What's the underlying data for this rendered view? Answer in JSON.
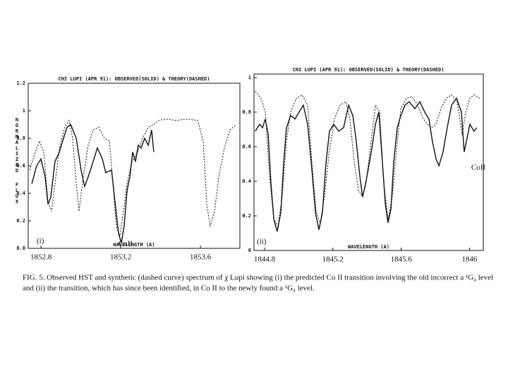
{
  "chart_data": [
    {
      "type": "line",
      "title": "CHI LUPI (APR 91): OBSERVED(SOLID) & THEORY(DASHED)",
      "y_label": "NORMALIZED FLUX",
      "x_label": "WAVELENGTH (A)",
      "annotations": [
        "(i)",
        "CoII"
      ],
      "xlim": [
        1852.736,
        1853.798
      ],
      "ylim": [
        0,
        1.2
      ],
      "xticks": [
        1852.8,
        1853.2,
        1853.6
      ],
      "yticks": [
        1.2,
        1,
        0.8,
        0.6,
        0.4,
        0.2,
        {
          "value": 0,
          "label": "0.0"
        }
      ],
      "series": [
        {
          "color": "#111111",
          "dashed": false,
          "x": [
            1852.754,
            1852.778,
            1852.8,
            1852.821,
            1852.835,
            1852.849,
            1852.87,
            1852.892,
            1852.913,
            1852.931,
            1852.949,
            1852.977,
            1853.001,
            1853.019,
            1853.037,
            1853.055,
            1853.083,
            1853.108,
            1853.125,
            1853.154,
            1853.171,
            1853.189,
            1853.203,
            1853.217,
            1853.232,
            1853.246,
            1853.26,
            1853.274,
            1853.288,
            1853.302,
            1853.32,
            1853.338,
            1853.355,
            1853.366
          ],
          "values": [
            0.47,
            0.6,
            0.65,
            0.52,
            0.32,
            0.37,
            0.63,
            0.7,
            0.8,
            0.88,
            0.9,
            0.8,
            0.57,
            0.45,
            0.52,
            0.6,
            0.73,
            0.65,
            0.55,
            0.57,
            0.34,
            0.11,
            0.04,
            0.16,
            0.42,
            0.52,
            0.7,
            0.63,
            0.75,
            0.73,
            0.8,
            0.75,
            0.86,
            0.7
          ]
        },
        {
          "color": "#111111",
          "dashed": true,
          "x": [
            1852.743,
            1852.771,
            1852.793,
            1852.814,
            1852.835,
            1852.853,
            1852.87,
            1852.895,
            1852.92,
            1852.941,
            1852.959,
            1852.977,
            1852.991,
            1853.012,
            1853.037,
            1853.062,
            1853.09,
            1853.118,
            1853.143,
            1853.161,
            1853.178,
            1853.196,
            1853.214,
            1853.232,
            1853.256,
            1853.285,
            1853.309,
            1853.338,
            1853.366,
            1853.391,
            1853.426,
            1853.479,
            1853.532,
            1853.586,
            1853.614,
            1853.632,
            1853.649,
            1853.671,
            1853.692,
            1853.72,
            1853.748,
            1853.78
          ],
          "values": [
            0.57,
            0.7,
            0.78,
            0.7,
            0.34,
            0.27,
            0.47,
            0.75,
            0.88,
            0.93,
            0.8,
            0.47,
            0.27,
            0.52,
            0.75,
            0.86,
            0.88,
            0.8,
            0.78,
            0.47,
            0.16,
            0.09,
            0.27,
            0.47,
            0.63,
            0.7,
            0.8,
            0.88,
            0.9,
            0.93,
            0.94,
            0.93,
            0.94,
            0.93,
            0.78,
            0.32,
            0.16,
            0.27,
            0.52,
            0.73,
            0.86,
            0.9
          ]
        }
      ]
    },
    {
      "type": "line",
      "title": "CHI LUPI (APR 91): OBSERVED(SOLID) & THEORY(DASHED)",
      "x_label": "WAVELENGTH (A)",
      "annotations": [
        "(ii)",
        "CoII"
      ],
      "xlim": [
        1844.738,
        1846.081
      ],
      "ylim": [
        0,
        1.02
      ],
      "xticks": [
        1844.8,
        1845.2,
        1845.6,
        1846
      ],
      "yticks": [
        1,
        0.8,
        0.6,
        0.4,
        0.2,
        0
      ],
      "series": [
        {
          "color": "#111111",
          "dashed": false,
          "x": [
            1844.746,
            1844.771,
            1844.788,
            1844.804,
            1844.821,
            1844.837,
            1844.854,
            1844.874,
            1844.895,
            1844.912,
            1844.928,
            1844.953,
            1844.978,
            1845.002,
            1845.027,
            1845.052,
            1845.077,
            1845.098,
            1845.118,
            1845.139,
            1845.16,
            1845.18,
            1845.205,
            1845.234,
            1845.263,
            1845.292,
            1845.317,
            1845.337,
            1845.358,
            1845.374,
            1845.391,
            1845.407,
            1845.428,
            1845.449,
            1845.469,
            1845.49,
            1845.507,
            1845.523,
            1845.54,
            1845.556,
            1845.577,
            1845.598,
            1845.622,
            1845.647,
            1845.68,
            1845.709,
            1845.738,
            1845.763,
            1845.783,
            1845.804,
            1845.821,
            1845.845,
            1845.87,
            1845.895,
            1845.924,
            1845.953,
            1845.969,
            1845.986,
            1846.002,
            1846.027,
            1846.043
          ],
          "values": [
            0.69,
            0.73,
            0.71,
            0.76,
            0.67,
            0.39,
            0.18,
            0.11,
            0.22,
            0.51,
            0.71,
            0.78,
            0.76,
            0.8,
            0.84,
            0.73,
            0.47,
            0.22,
            0.12,
            0.22,
            0.51,
            0.69,
            0.73,
            0.69,
            0.71,
            0.84,
            0.78,
            0.63,
            0.43,
            0.31,
            0.38,
            0.47,
            0.59,
            0.73,
            0.8,
            0.51,
            0.27,
            0.16,
            0.24,
            0.51,
            0.71,
            0.78,
            0.84,
            0.86,
            0.82,
            0.86,
            0.8,
            0.76,
            0.63,
            0.53,
            0.49,
            0.57,
            0.71,
            0.84,
            0.88,
            0.8,
            0.57,
            0.65,
            0.73,
            0.69,
            0.71
          ]
        },
        {
          "color": "#111111",
          "dashed": true,
          "x": [
            1844.746,
            1844.779,
            1844.804,
            1844.829,
            1844.854,
            1844.879,
            1844.903,
            1844.928,
            1844.953,
            1844.986,
            1845.019,
            1845.052,
            1845.077,
            1845.102,
            1845.126,
            1845.151,
            1845.176,
            1845.209,
            1845.242,
            1845.275,
            1845.3,
            1845.325,
            1845.35,
            1845.374,
            1845.399,
            1845.424,
            1845.449,
            1845.474,
            1845.498,
            1845.523,
            1845.548,
            1845.573,
            1845.598,
            1845.631,
            1845.664,
            1845.697,
            1845.73,
            1845.755,
            1845.779,
            1845.804,
            1845.833,
            1845.862,
            1845.895,
            1845.928,
            1845.957,
            1845.978,
            1846.002,
            1846.027,
            1846.06
          ],
          "values": [
            0.92,
            0.88,
            0.8,
            0.43,
            0.18,
            0.14,
            0.31,
            0.63,
            0.8,
            0.88,
            0.9,
            0.84,
            0.51,
            0.22,
            0.16,
            0.31,
            0.55,
            0.76,
            0.84,
            0.86,
            0.76,
            0.51,
            0.35,
            0.31,
            0.43,
            0.63,
            0.84,
            0.8,
            0.39,
            0.18,
            0.31,
            0.59,
            0.82,
            0.88,
            0.89,
            0.84,
            0.76,
            0.73,
            0.71,
            0.73,
            0.82,
            0.88,
            0.9,
            0.86,
            0.67,
            0.8,
            0.88,
            0.9,
            0.88
          ]
        }
      ]
    }
  ],
  "caption": [
    "FIG. 5.   Observed HST and synthetic (dashed curve) spectrum of χ Lupi showing (i) the predicted Co II transition involving the old incorrect a ¹G₄ level",
    "and (ii) the transition, which has since been identified, in Co II to the newly found a ¹G₄ level."
  ]
}
